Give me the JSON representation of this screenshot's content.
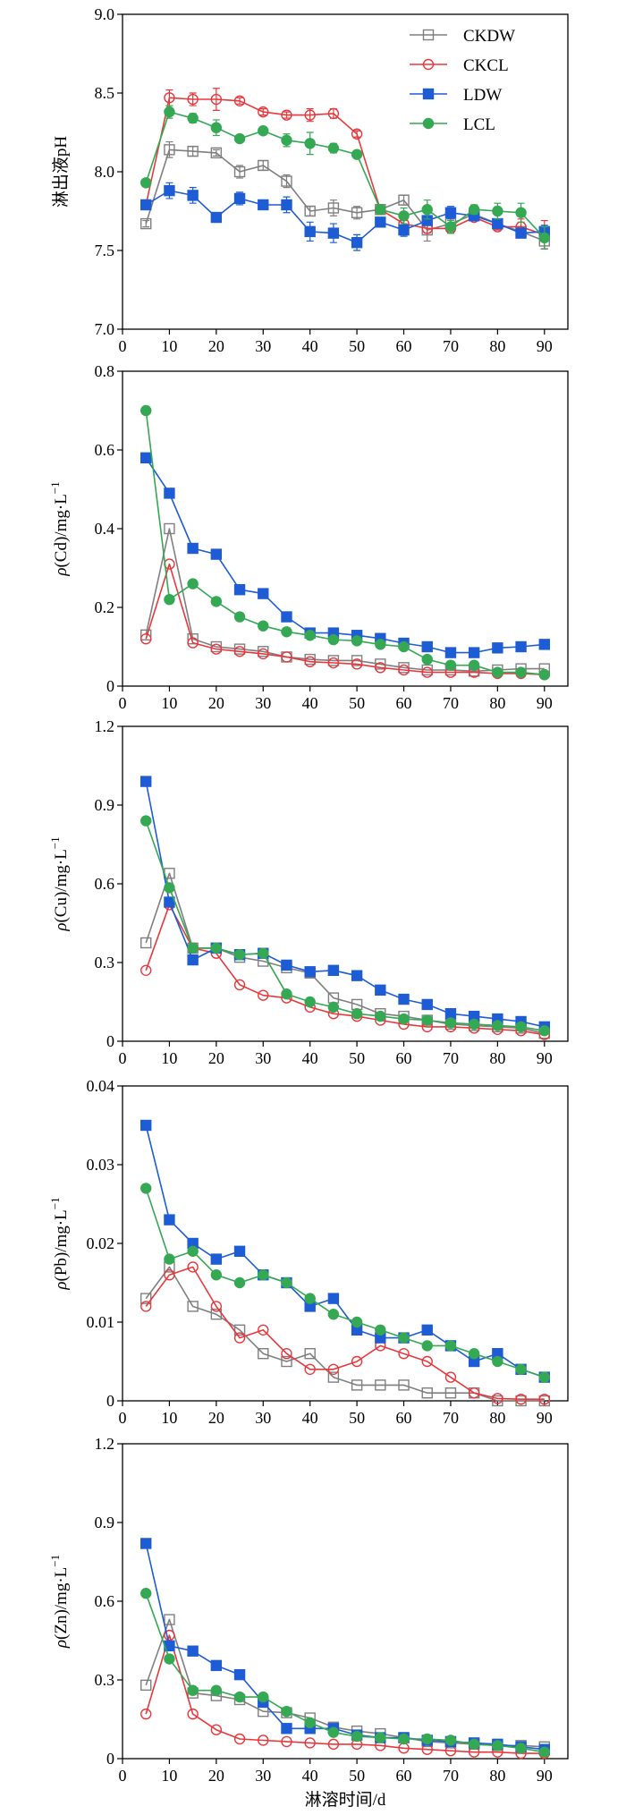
{
  "chart_data": [
    {
      "type": "line",
      "ylabel": {
        "text": "淋出液pH"
      },
      "xlim": [
        0,
        95
      ],
      "xticks": [
        0,
        10,
        20,
        30,
        40,
        50,
        60,
        70,
        80,
        90
      ],
      "ylim": [
        7.0,
        9.0
      ],
      "yticks": [
        "7.0",
        "7.5",
        "8.0",
        "8.5",
        "9.0"
      ],
      "grid": false,
      "legend": "top-right",
      "x": [
        5,
        10,
        15,
        20,
        25,
        30,
        35,
        40,
        45,
        50,
        55,
        60,
        65,
        70,
        75,
        80,
        85,
        90
      ],
      "series": [
        {
          "name": "CKDW",
          "color": "#7f7f7f",
          "marker": "open-square",
          "values": [
            7.67,
            8.14,
            8.13,
            8.12,
            8.0,
            8.04,
            7.94,
            7.75,
            7.77,
            7.74,
            7.76,
            7.82,
            7.63,
            7.67,
            7.73,
            7.67,
            7.62,
            7.56
          ],
          "err": [
            0.02,
            0.05,
            0.03,
            0.02,
            0.04,
            0.03,
            0.04,
            0.03,
            0.05,
            0.04,
            0.03,
            0.03,
            0.07,
            0.03,
            0.03,
            0.03,
            0.03,
            0.05
          ]
        },
        {
          "name": "CKCL",
          "color": "#e8383d",
          "marker": "open-circle",
          "values": [
            7.79,
            8.47,
            8.46,
            8.46,
            8.45,
            8.38,
            8.36,
            8.36,
            8.37,
            8.24,
            7.76,
            7.67,
            7.64,
            7.64,
            7.71,
            7.65,
            7.65,
            7.6
          ],
          "err": [
            0.02,
            0.05,
            0.04,
            0.07,
            0.02,
            0.02,
            0.02,
            0.04,
            0.03,
            0.02,
            0.02,
            0.02,
            0.03,
            0.03,
            0.02,
            0.02,
            0.05,
            0.09
          ]
        },
        {
          "name": "LDW",
          "color": "#1e5cd6",
          "marker": "filled-square",
          "values": [
            7.79,
            7.88,
            7.85,
            7.71,
            7.83,
            7.79,
            7.79,
            7.62,
            7.61,
            7.55,
            7.68,
            7.63,
            7.69,
            7.74,
            7.72,
            7.67,
            7.61,
            7.62
          ],
          "err": [
            0.02,
            0.05,
            0.05,
            0.02,
            0.04,
            0.03,
            0.05,
            0.06,
            0.06,
            0.05,
            0.03,
            0.04,
            0.03,
            0.04,
            0.03,
            0.02,
            0.03,
            0.04
          ]
        },
        {
          "name": "LCL",
          "color": "#34a853",
          "marker": "filled-circle",
          "values": [
            7.93,
            8.38,
            8.34,
            8.28,
            8.21,
            8.26,
            8.2,
            8.18,
            8.15,
            8.11,
            7.76,
            7.72,
            7.76,
            7.65,
            7.76,
            7.75,
            7.74,
            7.58
          ],
          "err": [
            0.02,
            0.04,
            0.03,
            0.05,
            0.02,
            0.02,
            0.04,
            0.07,
            0.03,
            0.02,
            0.03,
            0.05,
            0.06,
            0.04,
            0.03,
            0.05,
            0.06,
            0.07
          ]
        }
      ]
    },
    {
      "type": "line",
      "ylabel": {
        "symbol": "ρ",
        "text": "(Cd)/mg·L",
        "sup": "−1"
      },
      "xlim": [
        0,
        95
      ],
      "xticks": [
        0,
        10,
        20,
        30,
        40,
        50,
        60,
        70,
        80,
        90
      ],
      "ylim": [
        0,
        0.8
      ],
      "yticks": [
        "0",
        "0.2",
        "0.4",
        "0.6",
        "0.8"
      ],
      "grid": false,
      "x": [
        5,
        10,
        15,
        20,
        25,
        30,
        35,
        40,
        45,
        50,
        55,
        60,
        65,
        70,
        75,
        80,
        85,
        90
      ],
      "series": [
        {
          "color": "#7f7f7f",
          "marker": "open-square",
          "values": [
            0.13,
            0.4,
            0.12,
            0.1,
            0.094,
            0.088,
            0.074,
            0.068,
            0.065,
            0.065,
            0.056,
            0.047,
            0.041,
            0.041,
            0.038,
            0.041,
            0.044,
            0.044
          ]
        },
        {
          "color": "#e8383d",
          "marker": "open-circle",
          "values": [
            0.12,
            0.31,
            0.11,
            0.094,
            0.088,
            0.082,
            0.074,
            0.062,
            0.059,
            0.056,
            0.047,
            0.041,
            0.035,
            0.035,
            0.035,
            0.032,
            0.032,
            0.029
          ]
        },
        {
          "color": "#1e5cd6",
          "marker": "filled-square",
          "values": [
            0.58,
            0.49,
            0.35,
            0.335,
            0.245,
            0.235,
            0.176,
            0.135,
            0.135,
            0.129,
            0.121,
            0.109,
            0.1,
            0.085,
            0.085,
            0.097,
            0.1,
            0.106
          ]
        },
        {
          "color": "#34a853",
          "marker": "filled-circle",
          "values": [
            0.7,
            0.22,
            0.26,
            0.215,
            0.176,
            0.153,
            0.138,
            0.129,
            0.118,
            0.115,
            0.106,
            0.1,
            0.068,
            0.053,
            0.053,
            0.035,
            0.035,
            0.029
          ]
        }
      ]
    },
    {
      "type": "line",
      "ylabel": {
        "symbol": "ρ",
        "text": "(Cu)/mg·L",
        "sup": "−1"
      },
      "xlim": [
        0,
        95
      ],
      "xticks": [
        0,
        10,
        20,
        30,
        40,
        50,
        60,
        70,
        80,
        90
      ],
      "ylim": [
        0,
        1.2
      ],
      "yticks": [
        "0",
        "0.3",
        "0.6",
        "0.9",
        "1.2"
      ],
      "grid": false,
      "x": [
        5,
        10,
        15,
        20,
        25,
        30,
        35,
        40,
        45,
        50,
        55,
        60,
        65,
        70,
        75,
        80,
        85,
        90
      ],
      "series": [
        {
          "color": "#7f7f7f",
          "marker": "open-square",
          "values": [
            0.375,
            0.64,
            0.355,
            0.355,
            0.32,
            0.305,
            0.28,
            0.26,
            0.165,
            0.14,
            0.105,
            0.095,
            0.08,
            0.065,
            0.06,
            0.055,
            0.05,
            0.03
          ]
        },
        {
          "color": "#e8383d",
          "marker": "open-circle",
          "values": [
            0.27,
            0.52,
            0.355,
            0.335,
            0.215,
            0.175,
            0.165,
            0.13,
            0.105,
            0.095,
            0.08,
            0.065,
            0.055,
            0.055,
            0.05,
            0.045,
            0.04,
            0.025
          ]
        },
        {
          "color": "#1e5cd6",
          "marker": "filled-square",
          "values": [
            0.99,
            0.53,
            0.31,
            0.355,
            0.33,
            0.335,
            0.29,
            0.265,
            0.27,
            0.25,
            0.195,
            0.16,
            0.14,
            0.105,
            0.095,
            0.085,
            0.075,
            0.055
          ]
        },
        {
          "color": "#34a853",
          "marker": "filled-circle",
          "values": [
            0.84,
            0.585,
            0.355,
            0.355,
            0.33,
            0.335,
            0.18,
            0.15,
            0.13,
            0.105,
            0.095,
            0.085,
            0.08,
            0.07,
            0.065,
            0.06,
            0.055,
            0.04
          ]
        }
      ]
    },
    {
      "type": "line",
      "ylabel": {
        "symbol": "ρ",
        "text": "(Pb)/mg·L",
        "sup": "−1"
      },
      "xlim": [
        0,
        95
      ],
      "xticks": [
        0,
        10,
        20,
        30,
        40,
        50,
        60,
        70,
        80,
        90
      ],
      "ylim": [
        0,
        0.04
      ],
      "yticks": [
        "0",
        "0.01",
        "0.02",
        "0.03",
        "0.04"
      ],
      "grid": false,
      "x": [
        5,
        10,
        15,
        20,
        25,
        30,
        35,
        40,
        45,
        50,
        55,
        60,
        65,
        70,
        75,
        80,
        85,
        90
      ],
      "series": [
        {
          "color": "#7f7f7f",
          "marker": "open-square",
          "values": [
            0.013,
            0.017,
            0.012,
            0.011,
            0.009,
            0.006,
            0.005,
            0.006,
            0.003,
            0.002,
            0.002,
            0.002,
            0.001,
            0.001,
            0.001,
            0.0,
            0.0,
            0.0
          ]
        },
        {
          "color": "#e8383d",
          "marker": "open-circle",
          "values": [
            0.012,
            0.016,
            0.017,
            0.012,
            0.008,
            0.009,
            0.006,
            0.004,
            0.004,
            0.005,
            0.007,
            0.006,
            0.005,
            0.003,
            0.001,
            0.0003,
            0.0002,
            0.0002
          ]
        },
        {
          "color": "#1e5cd6",
          "marker": "filled-square",
          "values": [
            0.035,
            0.023,
            0.02,
            0.018,
            0.019,
            0.016,
            0.015,
            0.012,
            0.013,
            0.009,
            0.008,
            0.008,
            0.009,
            0.007,
            0.005,
            0.006,
            0.004,
            0.003
          ]
        },
        {
          "color": "#34a853",
          "marker": "filled-circle",
          "values": [
            0.027,
            0.018,
            0.019,
            0.016,
            0.015,
            0.016,
            0.015,
            0.013,
            0.011,
            0.01,
            0.009,
            0.008,
            0.007,
            0.007,
            0.006,
            0.005,
            0.004,
            0.003
          ]
        }
      ]
    },
    {
      "type": "line",
      "ylabel": {
        "symbol": "ρ",
        "text": "(Zn)/mg·L",
        "sup": "−1"
      },
      "xlabel": "淋溶时间/d",
      "xlim": [
        0,
        95
      ],
      "xticks": [
        0,
        10,
        20,
        30,
        40,
        50,
        60,
        70,
        80,
        90
      ],
      "ylim": [
        0,
        1.2
      ],
      "yticks": [
        "0",
        "0.3",
        "0.6",
        "0.9",
        "1.2"
      ],
      "grid": false,
      "x": [
        5,
        10,
        15,
        20,
        25,
        30,
        35,
        40,
        45,
        50,
        55,
        60,
        65,
        70,
        75,
        80,
        85,
        90
      ],
      "series": [
        {
          "color": "#7f7f7f",
          "marker": "open-square",
          "values": [
            0.28,
            0.53,
            0.25,
            0.24,
            0.225,
            0.18,
            0.175,
            0.155,
            0.12,
            0.105,
            0.095,
            0.08,
            0.065,
            0.06,
            0.055,
            0.05,
            0.05,
            0.045
          ]
        },
        {
          "color": "#e8383d",
          "marker": "open-circle",
          "values": [
            0.17,
            0.47,
            0.17,
            0.11,
            0.075,
            0.07,
            0.065,
            0.06,
            0.055,
            0.055,
            0.05,
            0.04,
            0.035,
            0.03,
            0.025,
            0.025,
            0.02,
            0.02
          ]
        },
        {
          "color": "#1e5cd6",
          "marker": "filled-square",
          "values": [
            0.82,
            0.43,
            0.41,
            0.355,
            0.32,
            0.215,
            0.115,
            0.115,
            0.115,
            0.09,
            0.08,
            0.08,
            0.07,
            0.065,
            0.06,
            0.055,
            0.045,
            0.035
          ]
        },
        {
          "color": "#34a853",
          "marker": "filled-circle",
          "values": [
            0.63,
            0.38,
            0.26,
            0.26,
            0.235,
            0.235,
            0.18,
            0.137,
            0.1,
            0.085,
            0.08,
            0.075,
            0.075,
            0.07,
            0.055,
            0.05,
            0.04,
            0.025
          ]
        }
      ]
    }
  ]
}
